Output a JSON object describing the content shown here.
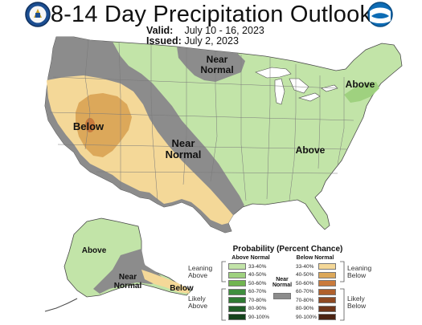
{
  "title": "8-14 Day Precipitation Outlook",
  "valid_label": "Valid:",
  "valid_value": "July 10 - 16, 2023",
  "issued_label": "Issued:",
  "issued_value": "July 2, 2023",
  "logos": {
    "left": "Department of Commerce seal",
    "right": "NOAA logo"
  },
  "map_labels": {
    "near_normal_north": "Near\nNormal",
    "above_northeast": "Above",
    "below_west": "Below",
    "near_normal_central": "Near\nNormal",
    "above_southeast": "Above",
    "above_alaska": "Above",
    "near_normal_alaska": "Near\nNormal",
    "below_alaska": "Below"
  },
  "legend": {
    "title": "Probability (Percent Chance)",
    "above_header": "Above Normal",
    "below_header": "Below Normal",
    "near_header": "Near\nNormal",
    "leaning_above": "Leaning\nAbove",
    "likely_above": "Likely\nAbove",
    "leaning_below": "Leaning\nBelow",
    "likely_below": "Likely\nBelow",
    "above": [
      {
        "pct": "33-40%",
        "color": "#c2e4a8"
      },
      {
        "pct": "40-50%",
        "color": "#9fd17f"
      },
      {
        "pct": "50-60%",
        "color": "#71b450"
      },
      {
        "pct": "60-70%",
        "color": "#3f8f3e"
      },
      {
        "pct": "70-80%",
        "color": "#2f7a33"
      },
      {
        "pct": "80-90%",
        "color": "#1f5d27"
      },
      {
        "pct": "90-100%",
        "color": "#14421b"
      }
    ],
    "below": [
      {
        "pct": "33-40%",
        "color": "#f4d898"
      },
      {
        "pct": "40-50%",
        "color": "#dca85a"
      },
      {
        "pct": "50-60%",
        "color": "#c97a3c"
      },
      {
        "pct": "60-70%",
        "color": "#b0602c"
      },
      {
        "pct": "70-80%",
        "color": "#8f4a23"
      },
      {
        "pct": "80-90%",
        "color": "#6f361a"
      },
      {
        "pct": "90-100%",
        "color": "#4b2312"
      }
    ],
    "near_color": "#8c8c8c"
  },
  "colors": {
    "near_normal": "#8c8c8c",
    "above_3340": "#c2e4a8",
    "above_4050": "#9fd17f",
    "below_3340": "#f4d898",
    "below_4050": "#dca85a",
    "below_5060": "#c97a3c",
    "water": "#ffffff"
  }
}
